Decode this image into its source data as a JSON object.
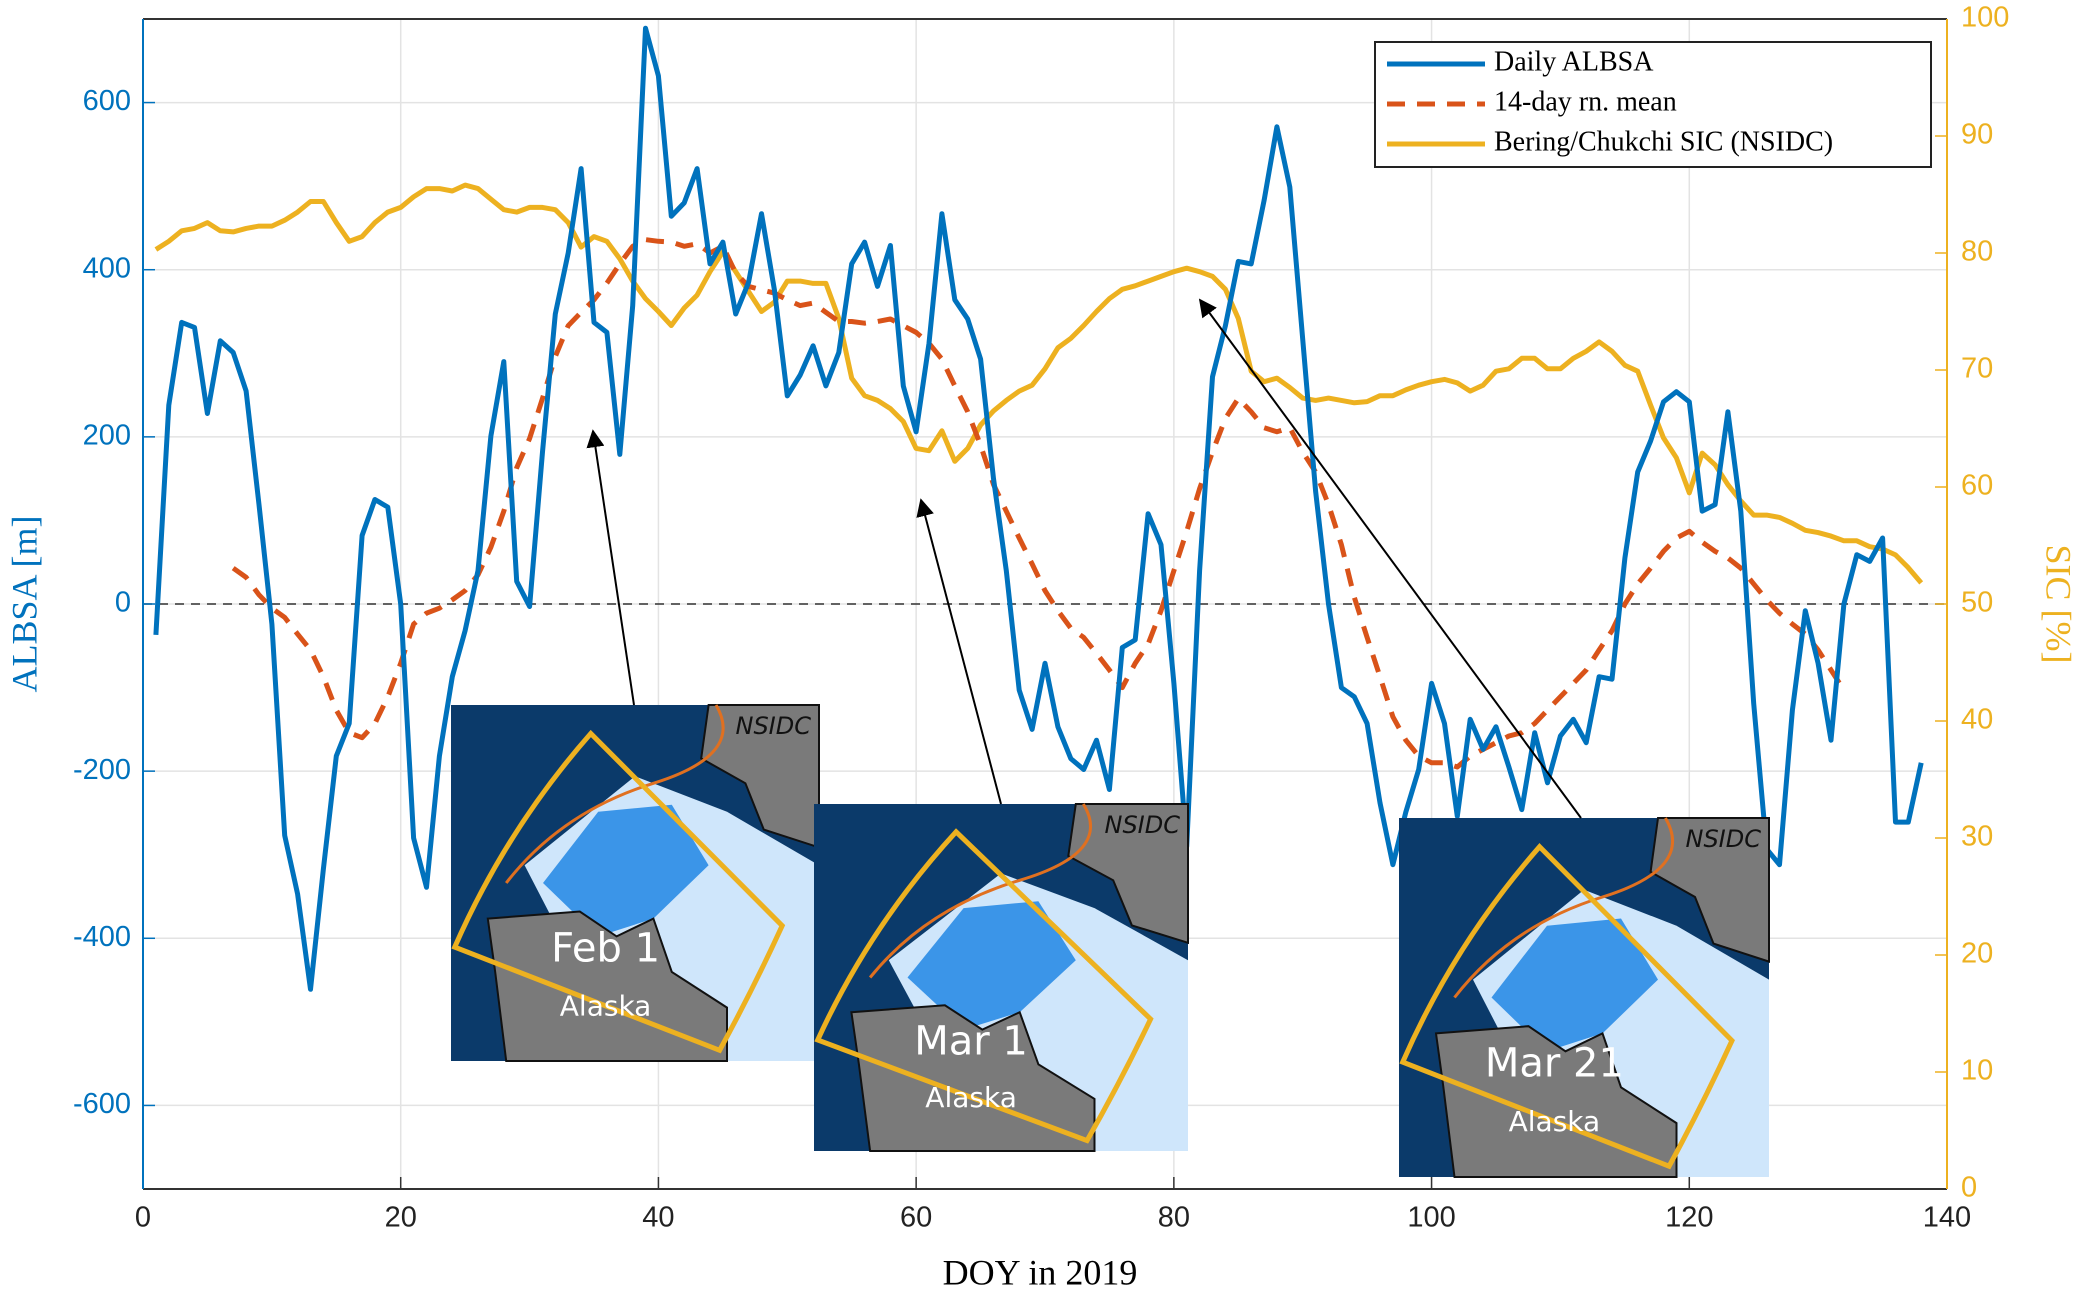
{
  "chart_data": {
    "type": "line",
    "xlabel": "DOY  in 2019",
    "ylabel": "ALBSA [m]",
    "y2label": "SIC [%]",
    "xlim": [
      0,
      140
    ],
    "xticks": [
      0,
      20,
      40,
      60,
      80,
      100,
      120,
      140
    ],
    "ylim": [
      -700,
      700
    ],
    "yticks": [
      -600,
      -400,
      -200,
      0,
      200,
      400,
      600
    ],
    "y2lim": [
      0,
      100
    ],
    "y2ticks": [
      0,
      10,
      20,
      30,
      40,
      50,
      60,
      70,
      80,
      90,
      100
    ],
    "grid": true,
    "legend": "upper right",
    "reference_line": 0,
    "x": [
      1,
      2,
      3,
      4,
      5,
      6,
      7,
      8,
      9,
      10,
      11,
      12,
      13,
      14,
      15,
      16,
      17,
      18,
      19,
      20,
      21,
      22,
      23,
      24,
      25,
      26,
      27,
      28,
      29,
      30,
      31,
      32,
      33,
      34,
      35,
      36,
      37,
      38,
      39,
      40,
      41,
      42,
      43,
      44,
      45,
      46,
      47,
      48,
      49,
      50,
      51,
      52,
      53,
      54,
      55,
      56,
      57,
      58,
      59,
      60,
      61,
      62,
      63,
      64,
      65,
      66,
      67,
      68,
      69,
      70,
      71,
      72,
      73,
      74,
      75,
      76,
      77,
      78,
      79,
      80,
      81,
      82,
      83,
      84,
      85,
      86,
      87,
      88,
      89,
      90,
      91,
      92,
      93,
      94,
      95,
      96,
      97,
      98,
      99,
      100,
      101,
      102,
      103,
      104,
      105,
      106,
      107,
      108,
      109,
      110,
      111,
      112,
      113,
      114,
      115,
      116,
      117,
      118,
      119,
      120,
      121,
      122,
      123,
      124,
      125,
      126,
      127,
      128,
      129,
      130,
      131,
      132,
      133,
      134,
      135,
      136,
      137,
      138
    ],
    "series": [
      {
        "name": "Daily ALBSA",
        "color": "#0072bd",
        "style": "solid",
        "values": [
          -37,
          238,
          337,
          331,
          228,
          315,
          301,
          255,
          119,
          -24,
          -277,
          -347,
          -461,
          -317,
          -182,
          -143,
          82,
          125,
          116,
          0,
          -280,
          -339,
          -182,
          -87,
          -32,
          40,
          201,
          290,
          27,
          -3,
          182,
          347,
          420,
          521,
          337,
          325,
          179,
          357,
          689,
          632,
          464,
          480,
          521,
          407,
          433,
          347,
          385,
          467,
          376,
          249,
          274,
          309,
          261,
          301,
          407,
          433,
          380,
          429,
          261,
          206,
          312,
          467,
          364,
          341,
          293,
          150,
          40,
          -103,
          -150,
          -71,
          -147,
          -185,
          -198,
          -163,
          -222,
          -52,
          -43,
          108,
          71,
          -95,
          -290,
          40,
          272,
          333,
          410,
          407,
          483,
          571,
          499,
          317,
          135,
          0,
          -100,
          -111,
          -143,
          -238,
          -312,
          -249,
          -198,
          -95,
          -143,
          -254,
          -138,
          -174,
          -147,
          -195,
          -246,
          -154,
          -214,
          -158,
          -138,
          -166,
          -87,
          -90,
          55,
          158,
          195,
          242,
          254,
          242,
          111,
          119,
          230,
          111,
          -119,
          -293,
          -312,
          -127,
          -8,
          -71,
          -163,
          0,
          59,
          51,
          79,
          -261,
          -261,
          -190
        ]
      },
      {
        "name": "14-day rn. mean",
        "color": "#d95319",
        "style": "dashed",
        "values": [
          null,
          null,
          null,
          null,
          null,
          null,
          43,
          32,
          11,
          -5,
          -16,
          -36,
          -55,
          -87,
          -127,
          -154,
          -160,
          -143,
          -111,
          -71,
          -24,
          -11,
          -5,
          5,
          16,
          35,
          68,
          111,
          163,
          198,
          246,
          296,
          333,
          349,
          364,
          384,
          407,
          428,
          436,
          434,
          433,
          428,
          431,
          420,
          428,
          396,
          380,
          376,
          372,
          364,
          357,
          360,
          349,
          338,
          338,
          336,
          338,
          341,
          333,
          325,
          312,
          293,
          261,
          230,
          190,
          143,
          111,
          79,
          48,
          16,
          -8,
          -29,
          -40,
          -59,
          -79,
          -100,
          -71,
          -48,
          -8,
          40,
          87,
          138,
          182,
          222,
          246,
          230,
          211,
          206,
          211,
          182,
          158,
          119,
          71,
          8,
          -40,
          -87,
          -135,
          -163,
          -182,
          -190,
          -190,
          -195,
          -182,
          -174,
          -166,
          -158,
          -154,
          -143,
          -127,
          -111,
          -95,
          -79,
          -55,
          -32,
          0,
          24,
          43,
          63,
          79,
          87,
          74,
          63,
          55,
          43,
          24,
          5,
          -11,
          -24,
          -36,
          -55,
          -79,
          -103,
          null,
          null,
          null,
          null,
          null,
          null
        ]
      },
      {
        "name": "Bering/Chukchi  SIC (NSIDC)",
        "color": "#edb120",
        "style": "solid",
        "axis": "y2",
        "values": [
          80.3,
          81,
          81.9,
          82.1,
          82.6,
          81.9,
          81.8,
          82.1,
          82.3,
          82.3,
          82.8,
          83.5,
          84.4,
          84.4,
          82.6,
          81,
          81.4,
          82.6,
          83.5,
          83.9,
          84.8,
          85.5,
          85.5,
          85.3,
          85.8,
          85.5,
          84.6,
          83.7,
          83.5,
          83.9,
          83.9,
          83.7,
          82.6,
          80.5,
          81.4,
          81,
          79.5,
          77.6,
          76.1,
          75,
          73.8,
          75.3,
          76.4,
          78.4,
          80.1,
          78.4,
          76.7,
          75,
          75.8,
          77.6,
          77.6,
          77.4,
          77.4,
          74.4,
          69.3,
          67.8,
          67.4,
          66.7,
          65.6,
          63.3,
          63.1,
          64.8,
          62.2,
          63.3,
          65.3,
          66.5,
          67.4,
          68.2,
          68.7,
          70.1,
          71.9,
          72.7,
          73.8,
          75,
          76.1,
          76.9,
          77.2,
          77.6,
          78,
          78.4,
          78.7,
          78.4,
          78,
          76.9,
          74.4,
          69.9,
          69,
          69.3,
          68.5,
          67.6,
          67.4,
          67.6,
          67.4,
          67.2,
          67.3,
          67.8,
          67.8,
          68.3,
          68.7,
          69,
          69.2,
          68.9,
          68.2,
          68.7,
          69.9,
          70.1,
          71,
          71,
          70.1,
          70.1,
          71,
          71.6,
          72.4,
          71.6,
          70.4,
          69.9,
          67,
          64.2,
          62.5,
          59.5,
          62.9,
          61.9,
          60.2,
          58.8,
          57.6,
          57.6,
          57.4,
          56.9,
          56.3,
          56.1,
          55.8,
          55.4,
          55.4,
          54.9,
          54.7,
          54.2,
          53.1,
          51.8
        ]
      }
    ],
    "insets": [
      {
        "date": "Feb 1",
        "region": "Alaska",
        "source": "NSIDC"
      },
      {
        "date": "Mar 1",
        "region": "Alaska",
        "source": "NSIDC"
      },
      {
        "date": "Mar 21",
        "region": "Alaska",
        "source": "NSIDC"
      }
    ]
  }
}
